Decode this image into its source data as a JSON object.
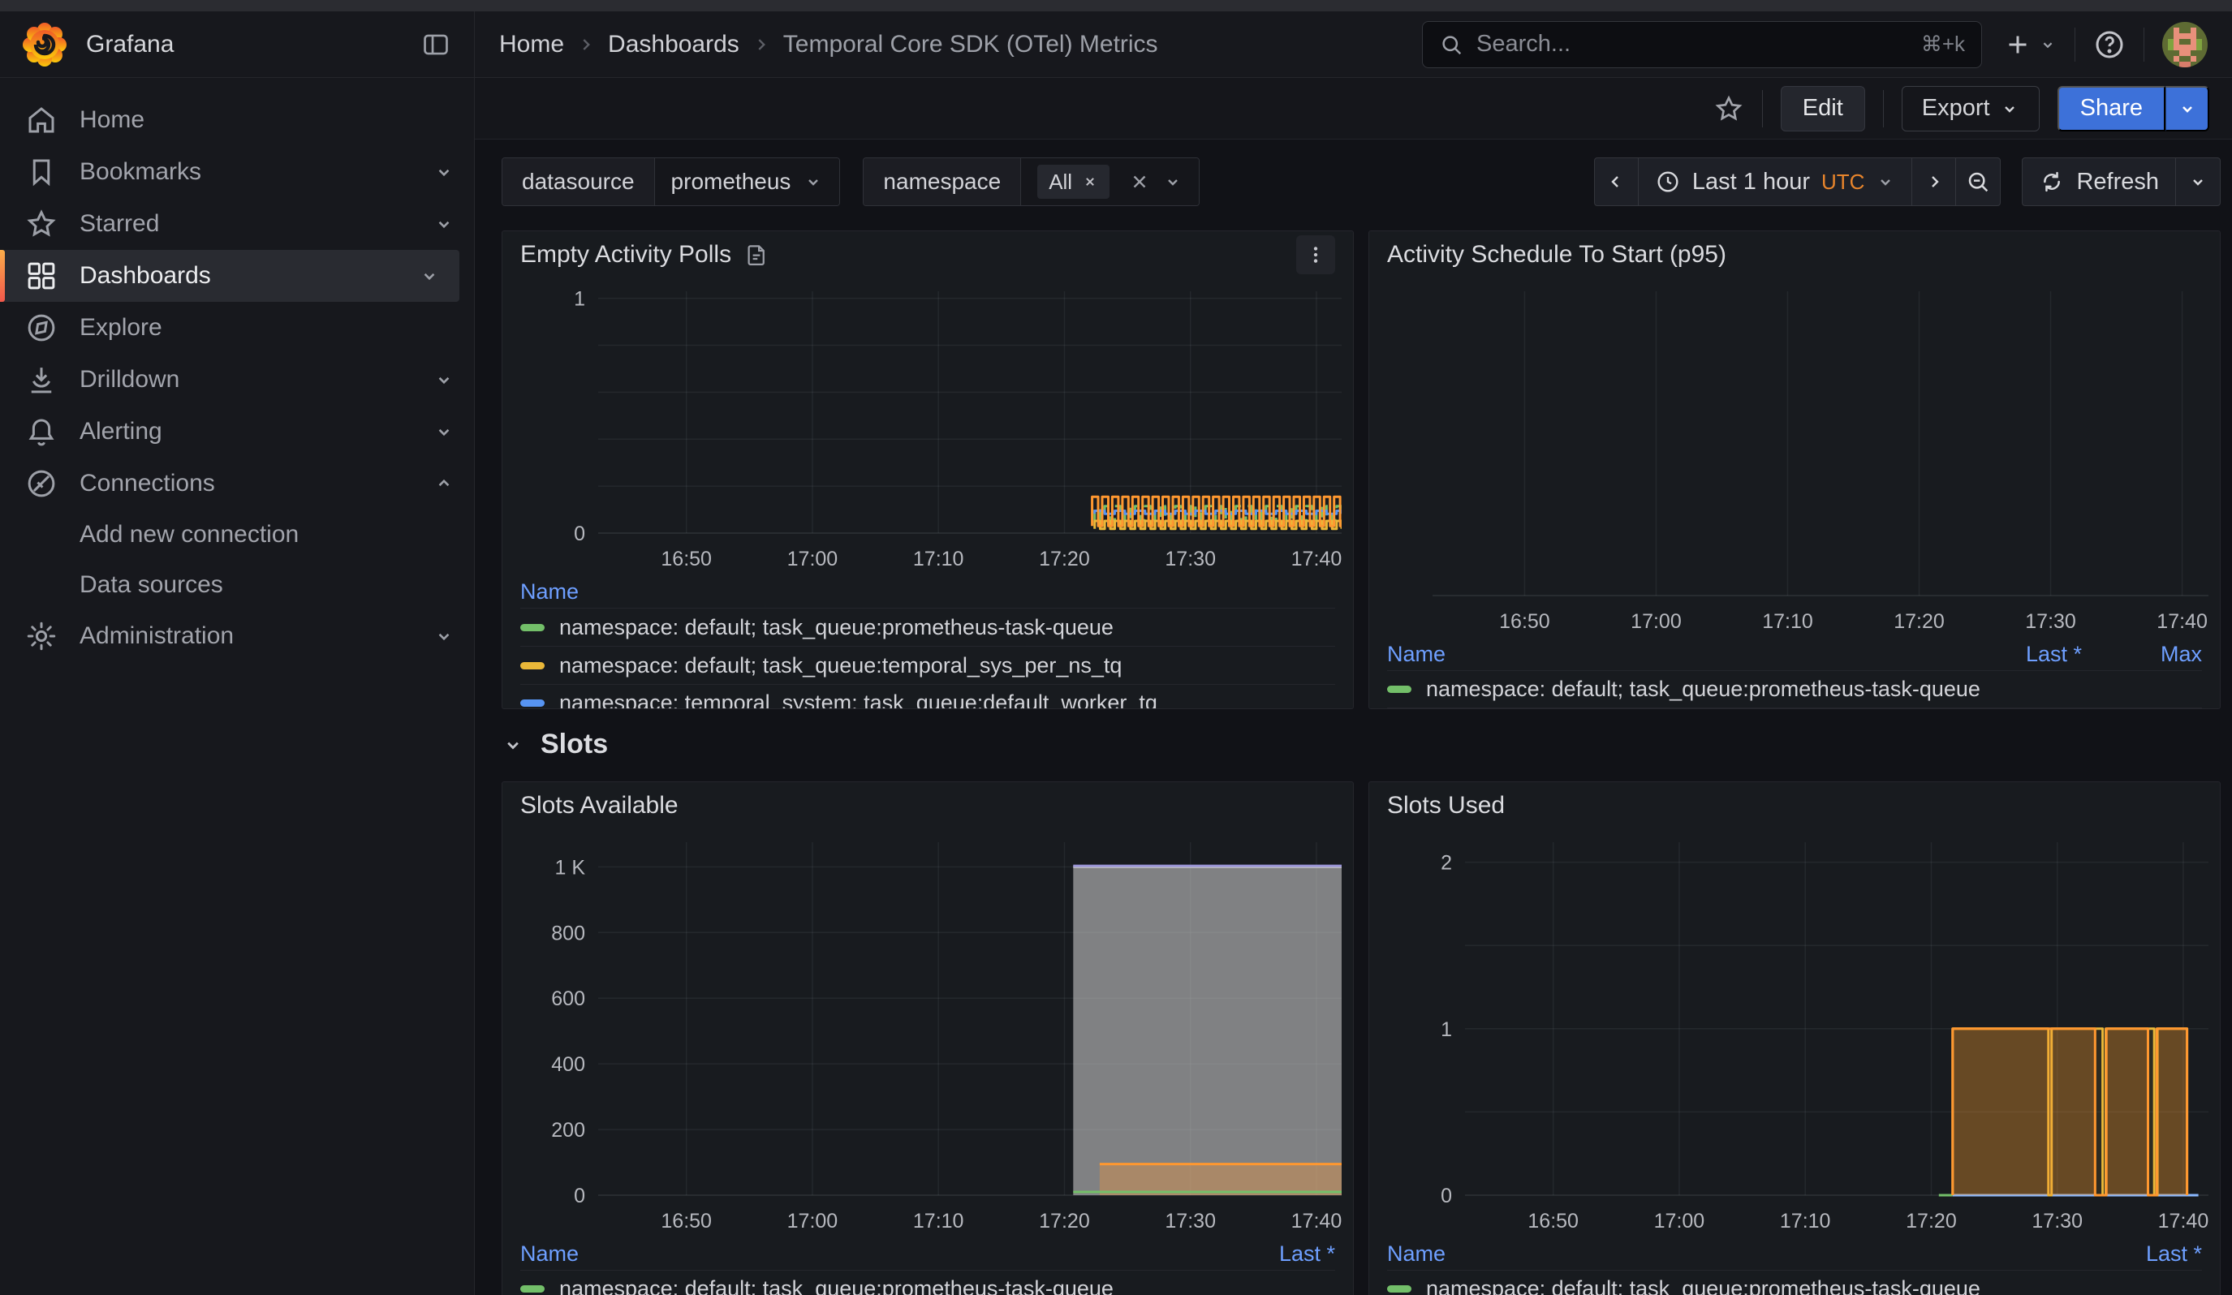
{
  "header": {
    "brand": "Grafana",
    "breadcrumb": [
      {
        "label": "Home",
        "current": false
      },
      {
        "label": "Dashboards",
        "current": false
      },
      {
        "label": "Temporal Core SDK (OTel) Metrics",
        "current": true
      }
    ],
    "search": {
      "placeholder": "Search...",
      "shortcut": "⌘+k"
    }
  },
  "sidebar": {
    "items": [
      {
        "label": "Home",
        "icon": "home",
        "chevron": "",
        "active": false,
        "children": []
      },
      {
        "label": "Bookmarks",
        "icon": "bookmark",
        "chevron": "down",
        "active": false,
        "children": []
      },
      {
        "label": "Starred",
        "icon": "star",
        "chevron": "down",
        "active": false,
        "children": []
      },
      {
        "label": "Dashboards",
        "icon": "grid",
        "chevron": "down",
        "active": true,
        "children": []
      },
      {
        "label": "Explore",
        "icon": "compass",
        "chevron": "",
        "active": false,
        "children": []
      },
      {
        "label": "Drilldown",
        "icon": "drilldown",
        "chevron": "down",
        "active": false,
        "children": []
      },
      {
        "label": "Alerting",
        "icon": "bell",
        "chevron": "down",
        "active": false,
        "children": []
      },
      {
        "label": "Connections",
        "icon": "plug",
        "chevron": "up",
        "active": false,
        "children": [
          "Add new connection",
          "Data sources"
        ]
      },
      {
        "label": "Administration",
        "icon": "gear",
        "chevron": "down",
        "active": false,
        "children": []
      }
    ]
  },
  "toolbar": {
    "edit": "Edit",
    "export": "Export",
    "share": "Share"
  },
  "filters": {
    "datasource": {
      "label": "datasource",
      "value": "prometheus"
    },
    "namespace": {
      "label": "namespace",
      "value": "All"
    }
  },
  "timebar": {
    "range": "Last 1 hour",
    "timezone": "UTC",
    "refresh": "Refresh"
  },
  "section": {
    "title": "Slots"
  },
  "chart_data": [
    {
      "id": "empty-activity-polls",
      "type": "line",
      "title": "Empty Activity Polls",
      "xlabel": "",
      "ylabel": "",
      "x_window": {
        "start": "16:43",
        "end": "17:42"
      },
      "margin_left": 118,
      "ylim": [
        0,
        1.03
      ],
      "y_ticks": [
        {
          "v": 0,
          "label": "0"
        },
        {
          "v": 1,
          "label": "1"
        }
      ],
      "y_grid": [
        0.2,
        0.4,
        0.6,
        0.8,
        1
      ],
      "x_ticks": [
        {
          "m": 7,
          "label": "16:50"
        },
        {
          "m": 17,
          "label": "17:00"
        },
        {
          "m": 27,
          "label": "17:10"
        },
        {
          "m": 37,
          "label": "17:20"
        },
        {
          "m": 47,
          "label": "17:30"
        },
        {
          "m": 57,
          "label": "17:40"
        }
      ],
      "series": [
        {
          "name": "namespace: default; task_queue:prometheus-task-queue",
          "color": "#73BF69",
          "dash": true,
          "mode": "square",
          "x0": 39.4,
          "x1": 59,
          "high": 0.115,
          "low": 0.055,
          "period": 0.8,
          "duty": 0.55
        },
        {
          "name": "namespace: default; task_queue:temporal_sys_per_ns_tq",
          "color": "#EAB839",
          "mode": "square",
          "x0": 39.4,
          "x1": 59,
          "high": 0.052,
          "low": 0.018,
          "period": 0.8,
          "duty": 0.55
        },
        {
          "name": "namespace: temporal_system; task_queue:default_worker_tq",
          "color": "#5794F2",
          "mode": "square",
          "x0": 39.4,
          "x1": 59,
          "high": 0.095,
          "low": 0.082,
          "period": 1.6,
          "duty": 0.5
        },
        {
          "name": "",
          "color": "#FF9830",
          "mode": "square",
          "x0": 39.2,
          "x1": 59,
          "high": 0.155,
          "low": 0.03,
          "period": 0.8,
          "duty": 0.6
        }
      ],
      "legend": {
        "columns": [
          "Name"
        ],
        "rows": [
          {
            "color": "#73BF69",
            "label": "namespace: default; task_queue:prometheus-task-queue"
          },
          {
            "color": "#EAB839",
            "label": "namespace: default; task_queue:temporal_sys_per_ns_tq"
          },
          {
            "color": "#5794F2",
            "label": "namespace: temporal_system; task_queue:default_worker_tq"
          }
        ]
      }
    },
    {
      "id": "activity-schedule-to-start-p95",
      "type": "line",
      "title": "Activity Schedule To Start (p95)",
      "xlabel": "",
      "ylabel": "",
      "x_window": {
        "start": "16:43",
        "end": "17:42"
      },
      "margin_left": 78,
      "ylim": [
        0,
        1
      ],
      "y_ticks": [],
      "y_grid": [],
      "x_ticks": [
        {
          "m": 7,
          "label": "16:50"
        },
        {
          "m": 17,
          "label": "17:00"
        },
        {
          "m": 27,
          "label": "17:10"
        },
        {
          "m": 37,
          "label": "17:20"
        },
        {
          "m": 47,
          "label": "17:30"
        },
        {
          "m": 57,
          "label": "17:40"
        }
      ],
      "series": [],
      "legend": {
        "columns": [
          "Name",
          "Last *",
          "Max"
        ],
        "rows": [
          {
            "color": "#73BF69",
            "label": "namespace: default; task_queue:prometheus-task-queue"
          }
        ]
      }
    },
    {
      "id": "slots-available",
      "type": "line",
      "title": "Slots Available",
      "xlabel": "",
      "ylabel": "",
      "x_window": {
        "start": "16:43",
        "end": "17:42"
      },
      "margin_left": 118,
      "ylim": [
        0,
        1075
      ],
      "y_ticks": [
        {
          "v": 0,
          "label": "0"
        },
        {
          "v": 200,
          "label": "200"
        },
        {
          "v": 400,
          "label": "400"
        },
        {
          "v": 600,
          "label": "600"
        },
        {
          "v": 800,
          "label": "800"
        },
        {
          "v": 1000,
          "label": "1 K"
        }
      ],
      "y_grid": [
        200,
        400,
        600,
        800,
        1000
      ],
      "x_ticks": [
        {
          "m": 7,
          "label": "16:50"
        },
        {
          "m": 17,
          "label": "17:00"
        },
        {
          "m": 27,
          "label": "17:10"
        },
        {
          "m": 37,
          "label": "17:20"
        },
        {
          "m": 47,
          "label": "17:30"
        },
        {
          "m": 57,
          "label": "17:40"
        }
      ],
      "series": [
        {
          "name": "",
          "color": "#C7C7C7",
          "mode": "steps",
          "fill": 0.6,
          "points": [
            [
              37.7,
              1000
            ],
            [
              59,
              1000
            ]
          ]
        },
        {
          "name": "",
          "color": "#FF9830",
          "mode": "steps",
          "fill": 0.32,
          "points": [
            [
              39.8,
              95
            ],
            [
              59,
              95
            ]
          ]
        },
        {
          "name": "",
          "color": "#73BF69",
          "mode": "steps",
          "points": [
            [
              37.7,
              10
            ],
            [
              59,
              10
            ]
          ]
        },
        {
          "name": "",
          "color": "#9B96D8",
          "mode": "steps",
          "points": [
            [
              37.7,
              1003
            ],
            [
              59,
              1003
            ]
          ]
        }
      ],
      "legend": {
        "columns": [
          "Name",
          "Last *"
        ],
        "rows": [
          {
            "color": "#73BF69",
            "label": "namespace: default; task_queue:prometheus-task-queue"
          }
        ]
      }
    },
    {
      "id": "slots-used",
      "type": "line",
      "title": "Slots Used",
      "xlabel": "",
      "ylabel": "",
      "x_window": {
        "start": "16:43",
        "end": "17:42"
      },
      "margin_left": 118,
      "ylim": [
        0,
        2.12
      ],
      "y_ticks": [
        {
          "v": 0,
          "label": "0"
        },
        {
          "v": 1,
          "label": "1"
        },
        {
          "v": 2,
          "label": "2"
        }
      ],
      "y_grid": [
        0.5,
        1,
        1.5,
        2
      ],
      "x_ticks": [
        {
          "m": 7,
          "label": "16:50"
        },
        {
          "m": 17,
          "label": "17:00"
        },
        {
          "m": 27,
          "label": "17:10"
        },
        {
          "m": 37,
          "label": "17:20"
        },
        {
          "m": 47,
          "label": "17:30"
        },
        {
          "m": 57,
          "label": "17:40"
        }
      ],
      "series": [
        {
          "name": "",
          "color": "#73BF69",
          "mode": "steps",
          "points": [
            [
              37.6,
              0
            ],
            [
              38.7,
              0
            ]
          ]
        },
        {
          "name": "",
          "color": "#8AB8FF",
          "mode": "steps",
          "points": [
            [
              38.7,
              0
            ],
            [
              58.2,
              0
            ]
          ]
        },
        {
          "name": "",
          "color": "#EAB839",
          "mode": "steps",
          "fill": 0.1,
          "points": [
            [
              38.7,
              0
            ],
            [
              38.7,
              1
            ],
            [
              46.3,
              1
            ],
            [
              46.3,
              0
            ],
            [
              46.55,
              0
            ],
            [
              46.55,
              1
            ],
            [
              50.6,
              1
            ],
            [
              50.6,
              0
            ],
            [
              50.85,
              0
            ],
            [
              50.85,
              1
            ],
            [
              54.7,
              1
            ],
            [
              54.7,
              0
            ],
            [
              54.95,
              0
            ],
            [
              54.95,
              1
            ],
            [
              57.3,
              1
            ],
            [
              57.3,
              0
            ]
          ]
        },
        {
          "name": "",
          "color": "#FF9830",
          "mode": "steps",
          "fill": 0.28,
          "points": [
            [
              38.7,
              0
            ],
            [
              38.7,
              1
            ],
            [
              50.0,
              1
            ],
            [
              50.0,
              0
            ],
            [
              50.9,
              0
            ],
            [
              50.9,
              1
            ],
            [
              54.2,
              1
            ],
            [
              54.2,
              0
            ],
            [
              54.9,
              0
            ],
            [
              54.9,
              1
            ],
            [
              57.3,
              1
            ],
            [
              57.3,
              0
            ]
          ]
        }
      ],
      "legend": {
        "columns": [
          "Name",
          "Last *"
        ],
        "rows": [
          {
            "color": "#73BF69",
            "label": "namespace: default; task_queue:prometheus-task-queue"
          }
        ]
      }
    }
  ]
}
